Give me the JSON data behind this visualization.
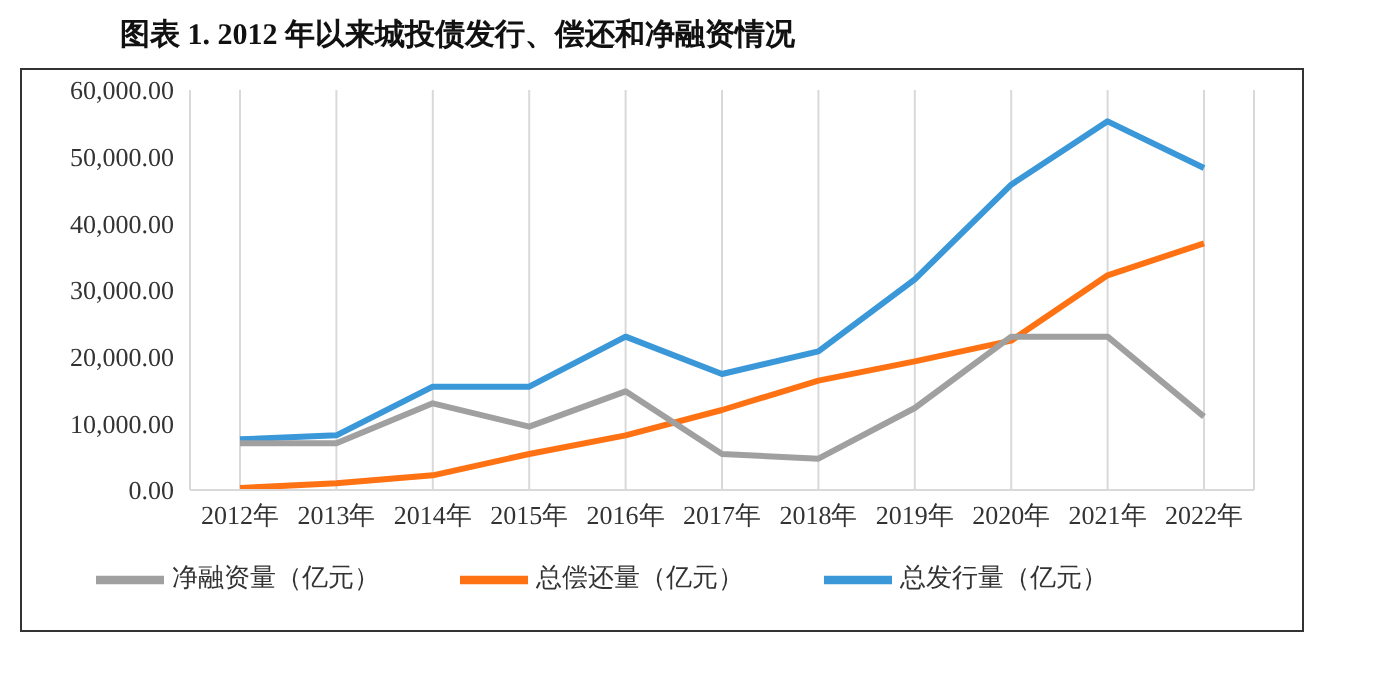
{
  "chart_data": {
    "type": "line",
    "title": "图表 1. 2012 年以来城投债发行、偿还和净融资情况",
    "categories": [
      "2012年",
      "2013年",
      "2014年",
      "2015年",
      "2016年",
      "2017年",
      "2018年",
      "2019年",
      "2020年",
      "2021年",
      "2022年"
    ],
    "series": [
      {
        "name": "总发行量（亿元）",
        "color": "#3a97d8",
        "values": [
          7600,
          8200,
          15500,
          15500,
          23000,
          17400,
          20800,
          31600,
          45800,
          55300,
          48300
        ]
      },
      {
        "name": "总偿还量（亿元）",
        "color": "#ff7214",
        "values": [
          300,
          1000,
          2200,
          5400,
          8200,
          12000,
          16400,
          19300,
          22400,
          32200,
          37000
        ]
      },
      {
        "name": "净融资量（亿元）",
        "color": "#a0a0a0",
        "values": [
          7000,
          7000,
          13000,
          9500,
          14800,
          5400,
          4700,
          12300,
          23000,
          23000,
          11000
        ]
      }
    ],
    "ylim": [
      0,
      60000
    ],
    "yticks": [
      {
        "value": 0,
        "label": "0.00"
      },
      {
        "value": 10000,
        "label": "10,000.00"
      },
      {
        "value": 20000,
        "label": "20,000.00"
      },
      {
        "value": 30000,
        "label": "30,000.00"
      },
      {
        "value": 40000,
        "label": "40,000.00"
      },
      {
        "value": 50000,
        "label": "50,000.00"
      },
      {
        "value": 60000,
        "label": "60,000.00"
      }
    ],
    "grid": "x",
    "legend": "bottom",
    "marker": "none",
    "line_style": "solid"
  }
}
